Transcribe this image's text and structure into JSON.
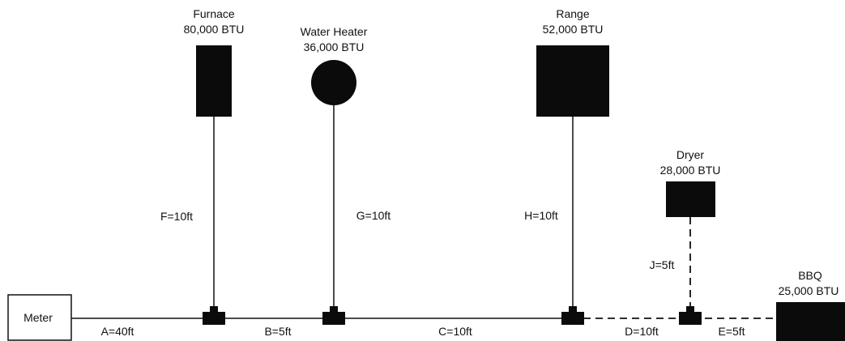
{
  "meter": {
    "label": "Meter"
  },
  "appliances": {
    "furnace": {
      "name": "Furnace",
      "btu": "80,000 BTU"
    },
    "water_heater": {
      "name": "Water Heater",
      "btu": "36,000 BTU"
    },
    "range": {
      "name": "Range",
      "btu": "52,000 BTU"
    },
    "dryer": {
      "name": "Dryer",
      "btu": "28,000 BTU"
    },
    "bbq": {
      "name": "BBQ",
      "btu": "25,000 BTU"
    }
  },
  "segments": {
    "a": "A=40ft",
    "b": "B=5ft",
    "c": "C=10ft",
    "d": "D=10ft",
    "e": "E=5ft",
    "f": "F=10ft",
    "g": "G=10ft",
    "h": "H=10ft",
    "j": "J=5ft"
  }
}
